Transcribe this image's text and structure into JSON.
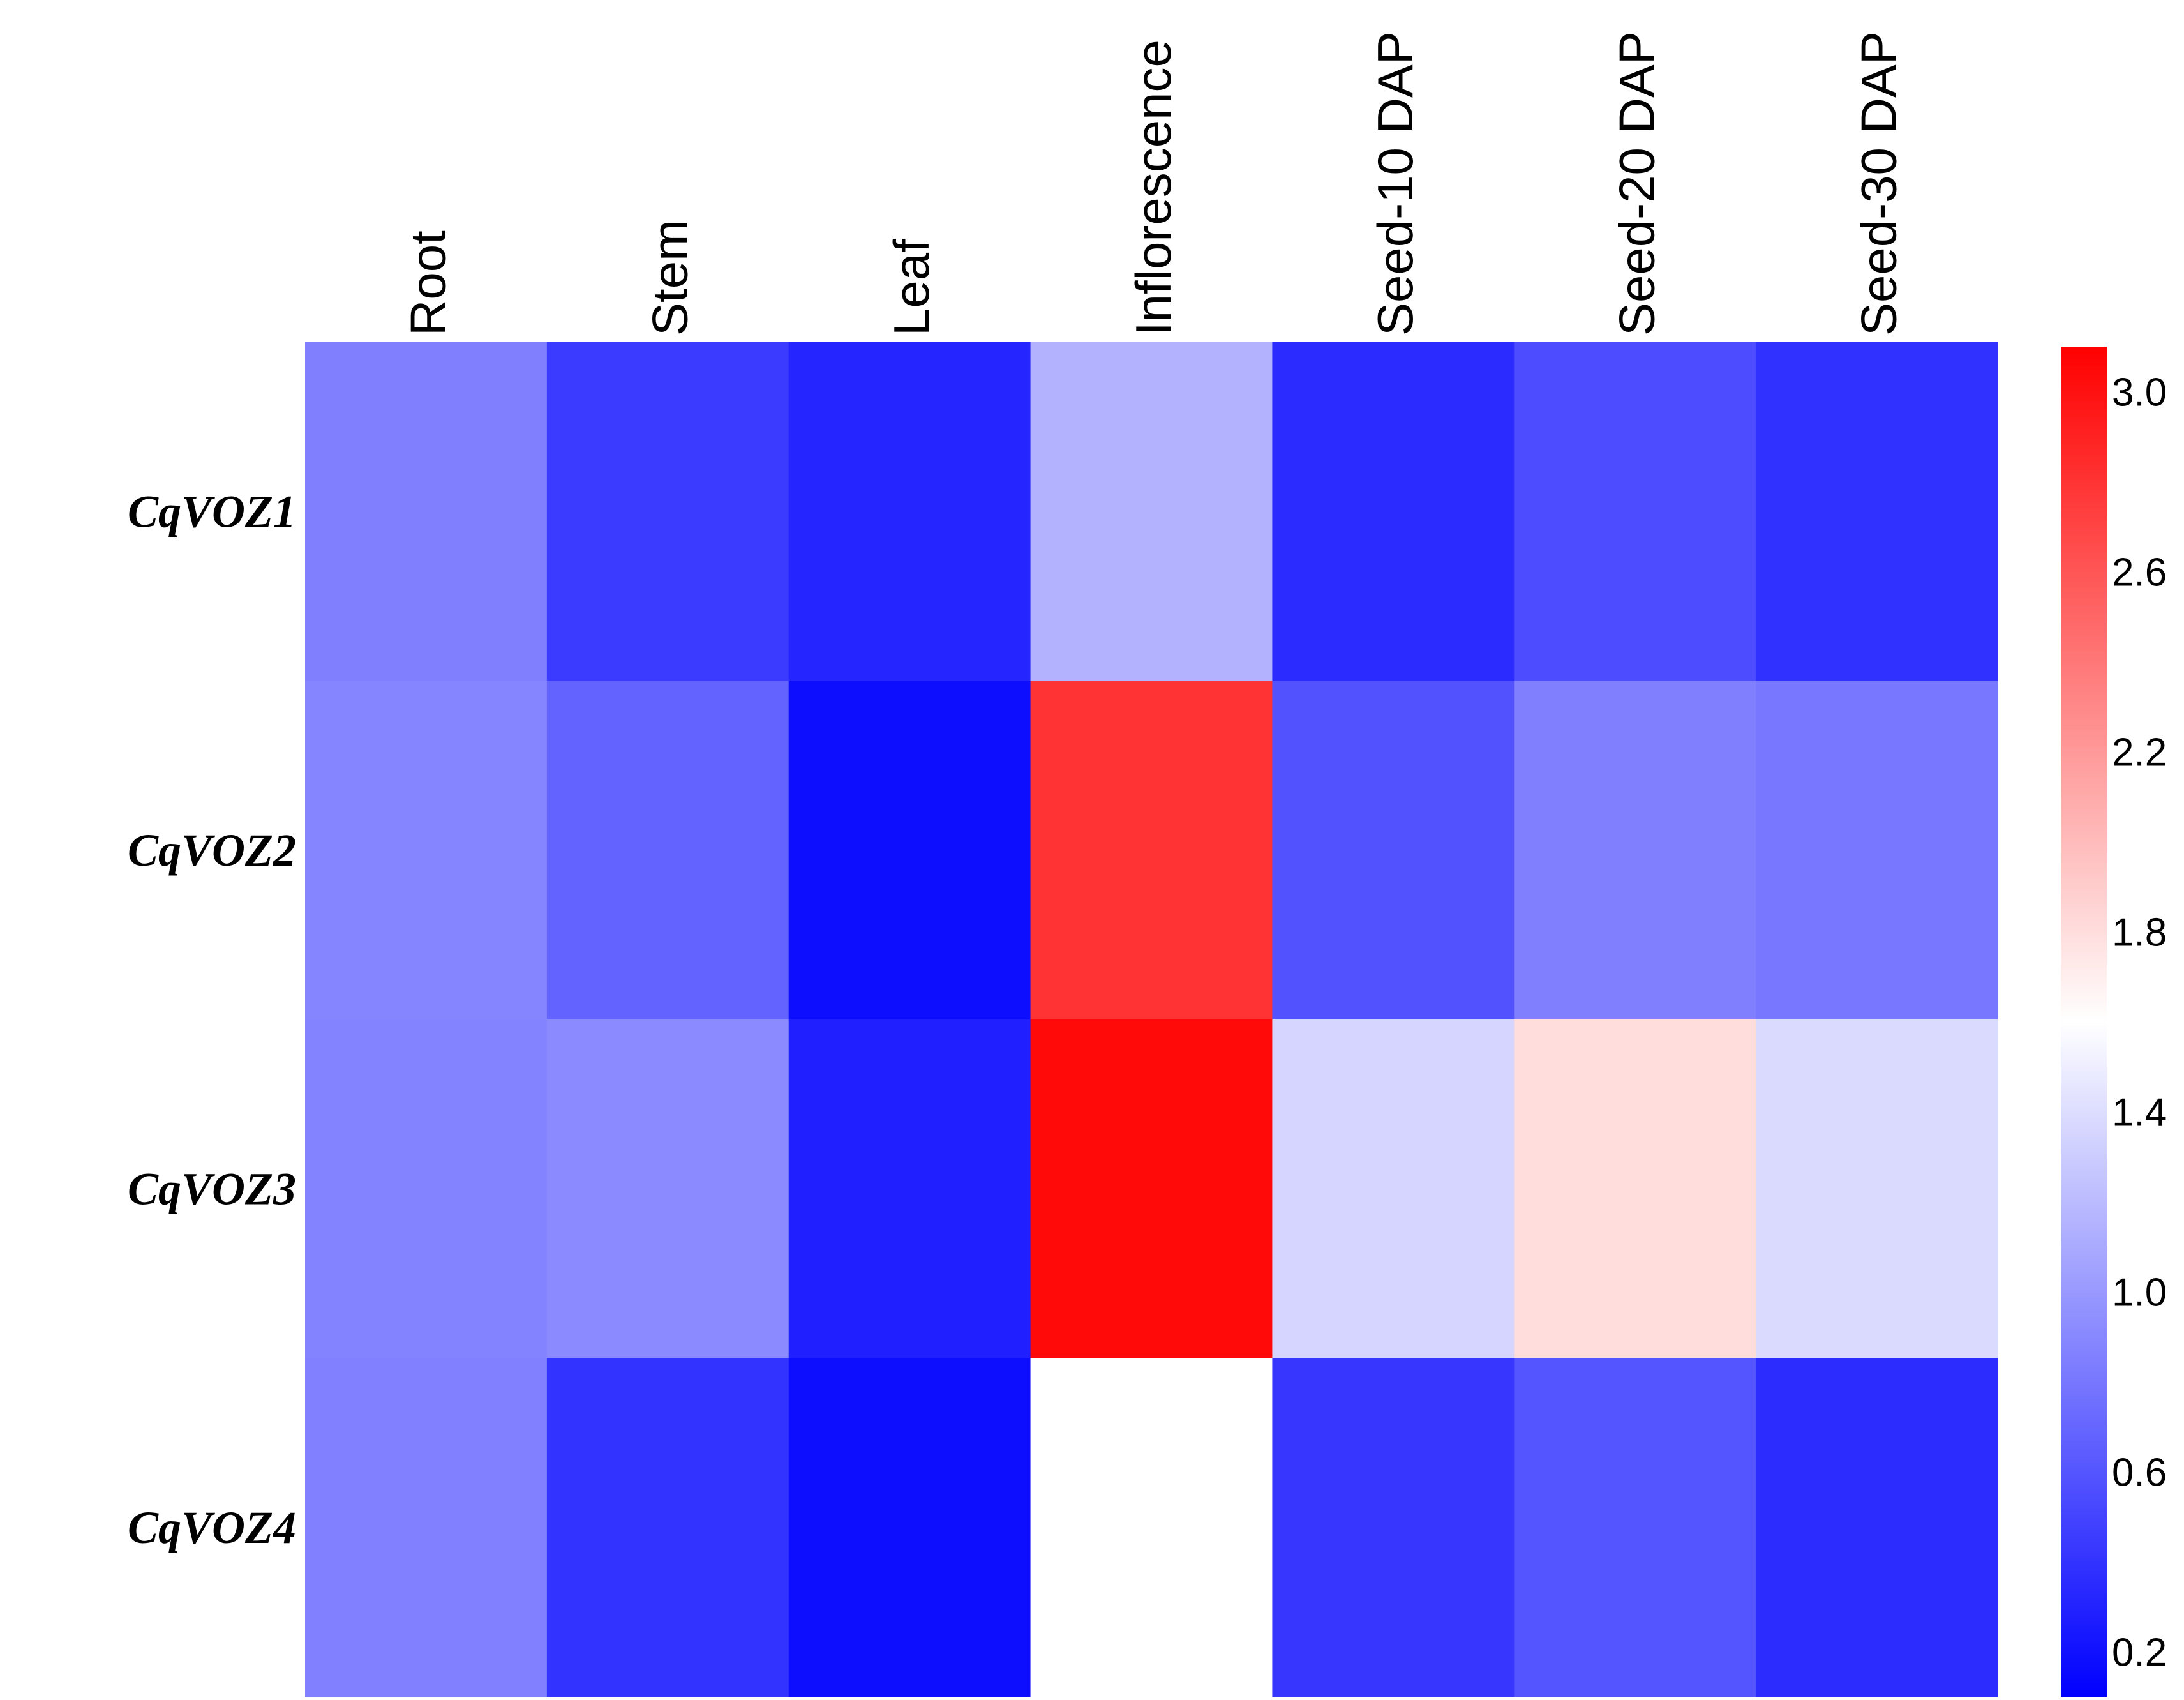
{
  "chart_data": {
    "type": "heatmap",
    "title": "",
    "columns": [
      "Root",
      "Stem",
      "Leaf",
      "Inflorescence",
      "Seed-10 DAP",
      "Seed-20 DAP",
      "Seed-30 DAP"
    ],
    "rows": [
      "CqVOZ1",
      "CqVOZ2",
      "CqVOZ3",
      "CqVOZ4"
    ],
    "values": [
      [
        0.85,
        0.45,
        0.32,
        1.15,
        0.35,
        0.55,
        0.38
      ],
      [
        0.88,
        0.68,
        0.18,
        2.8,
        0.58,
        0.85,
        0.8
      ],
      [
        0.87,
        0.92,
        0.28,
        3.05,
        1.35,
        1.8,
        1.38
      ],
      [
        0.86,
        0.4,
        0.18,
        null,
        0.42,
        0.6,
        0.36
      ]
    ],
    "colorbar": {
      "min": 0.1,
      "max": 3.1,
      "ticks": [
        0.2,
        0.6,
        1.0,
        1.4,
        1.8,
        2.2,
        2.6,
        3.0
      ],
      "tick_labels": [
        "0.2",
        "0.6",
        "1.0",
        "1.4",
        "1.8",
        "2.2",
        "2.6",
        "3.0"
      ],
      "colors": {
        "low": "#0000ff",
        "mid": "#ffffff",
        "high": "#ff0000"
      },
      "mid_value": 1.6
    },
    "missing_color": "#ffffff"
  }
}
